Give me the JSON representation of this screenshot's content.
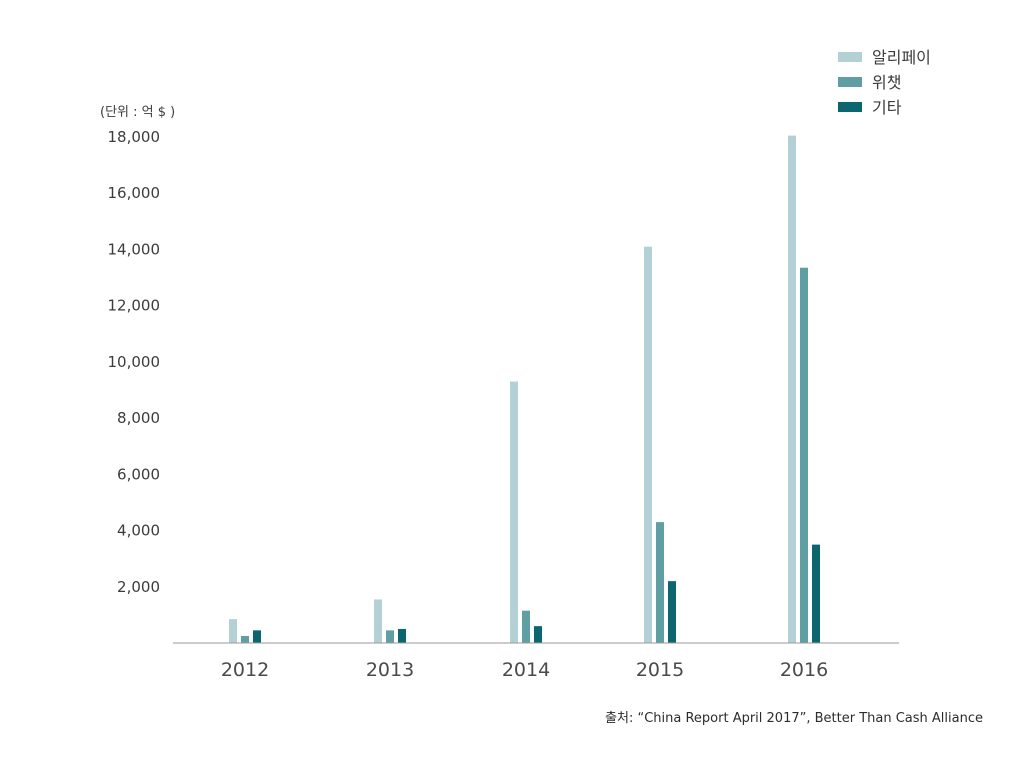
{
  "chart_data": {
    "type": "bar",
    "categories": [
      "2012",
      "2013",
      "2014",
      "2015",
      "2016"
    ],
    "series": [
      {
        "name": "알리페이",
        "color": "#b3d1d5",
        "values": [
          850,
          1550,
          9300,
          14100,
          18050
        ]
      },
      {
        "name": "위챗",
        "color": "#5f9ea3",
        "values": [
          250,
          450,
          1150,
          4300,
          13350
        ]
      },
      {
        "name": "기타",
        "color": "#0b6670",
        "values": [
          450,
          500,
          600,
          2200,
          3500
        ]
      }
    ],
    "ylim": [
      0,
      18000
    ],
    "yticks": [
      2000,
      4000,
      6000,
      8000,
      10000,
      12000,
      14000,
      16000,
      18000
    ],
    "ytick_labels": [
      "2,000",
      "4,000",
      "6,000",
      "8,000",
      "10,000",
      "12,000",
      "14,000",
      "16,000",
      "18,000"
    ],
    "unit_label": "(단위 : 억 $ )",
    "legend_position": "top-right",
    "source": "출처: “China Report April 2017”,  Better Than Cash Alliance"
  },
  "colors": {
    "axis": "#9a9a9a"
  }
}
